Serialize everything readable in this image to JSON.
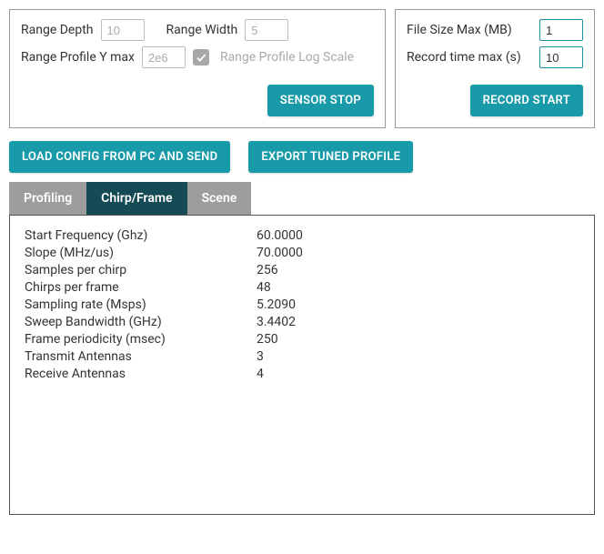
{
  "sensor_panel": {
    "range_depth_label": "Range Depth",
    "range_depth_value": "10",
    "range_width_label": "Range Width",
    "range_width_value": "5",
    "range_profile_ymax_label": "Range Profile Y max",
    "range_profile_ymax_value": "2e6",
    "range_profile_log_label": "Range Profile Log Scale",
    "sensor_stop_label": "SENSOR STOP"
  },
  "record_panel": {
    "file_size_label": "File Size Max (MB)",
    "file_size_value": "1",
    "record_time_label": "Record time max (s)",
    "record_time_value": "10",
    "record_start_label": "RECORD START"
  },
  "actions": {
    "load_config_label": "LOAD CONFIG FROM PC AND SEND",
    "export_profile_label": "EXPORT TUNED PROFILE"
  },
  "tabs": {
    "profiling": "Profiling",
    "chirp_frame": "Chirp/Frame",
    "scene": "Scene"
  },
  "params": [
    {
      "label": "Start Frequency (Ghz)",
      "value": "60.0000"
    },
    {
      "label": "Slope (MHz/us)",
      "value": "70.0000"
    },
    {
      "label": "Samples per chirp",
      "value": "256"
    },
    {
      "label": "Chirps per frame",
      "value": "48"
    },
    {
      "label": "Sampling rate (Msps)",
      "value": "5.2090"
    },
    {
      "label": "Sweep Bandwidth (GHz)",
      "value": "3.4402"
    },
    {
      "label": "Frame periodicity (msec)",
      "value": "250"
    },
    {
      "label": "Transmit Antennas",
      "value": "3"
    },
    {
      "label": "Receive Antennas",
      "value": "4"
    }
  ],
  "colors": {
    "primary": "#189aa8",
    "tab_inactive": "#9d9d9d",
    "tab_active": "#164b55",
    "border": "#999",
    "content_border": "#555"
  }
}
